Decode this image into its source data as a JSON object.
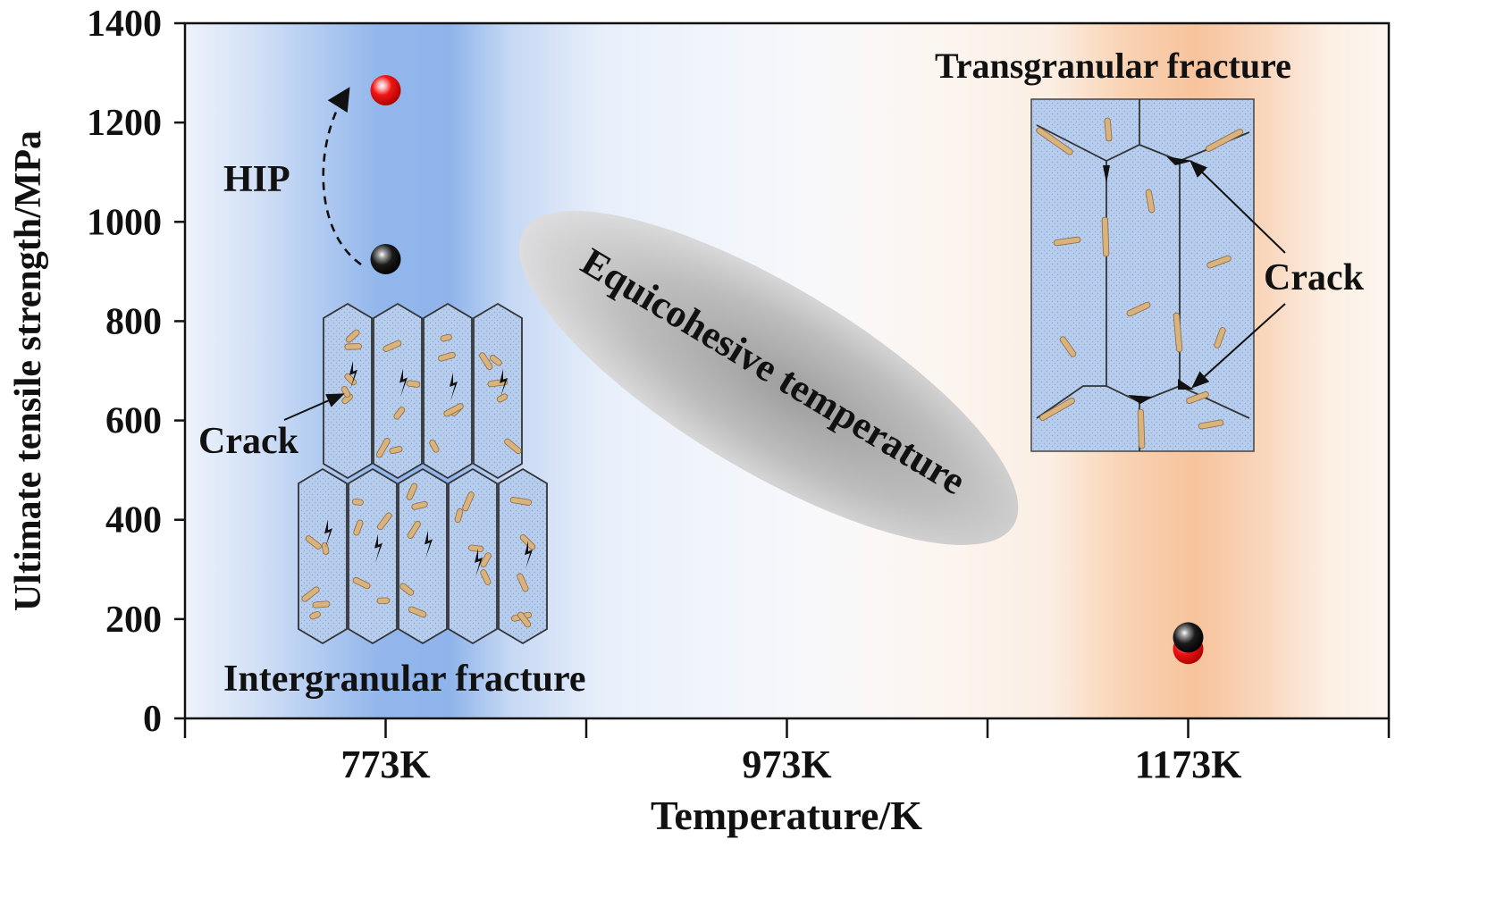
{
  "chart_data": {
    "type": "scatter",
    "xlabel": "Temperature/K",
    "ylabel": "Ultimate tensile strength/MPa",
    "ylim": [
      0,
      1400
    ],
    "xlim": [
      673,
      1273
    ],
    "yticks": [
      0,
      200,
      400,
      600,
      800,
      1000,
      1200,
      1400
    ],
    "xtick_positions": [
      773,
      973,
      1173
    ],
    "xtick_labels": [
      "773K",
      "973K",
      "1173K"
    ],
    "grid": false,
    "series": [
      {
        "color": "#e10e0e",
        "points": [
          {
            "x": 773,
            "y": 1265
          },
          {
            "x": 1173,
            "y": 140
          }
        ]
      },
      {
        "color": "#141414",
        "points": [
          {
            "x": 773,
            "y": 925
          },
          {
            "x": 1173,
            "y": 163
          }
        ]
      }
    ],
    "annotations": {
      "hip": "HIP",
      "crack_left": "Crack",
      "crack_right": "Crack",
      "intergranular": "Intergranular fracture",
      "transgranular": "Transgranular fracture",
      "equicohesive": "Equicohesive temperature"
    },
    "colors": {
      "cold_band": "#6f9ee6",
      "hot_band": "#f6b27a",
      "grain_fill": "#b9cfee",
      "precipitate": "#d9b27c",
      "ellipse": "#9a9a9a"
    }
  }
}
